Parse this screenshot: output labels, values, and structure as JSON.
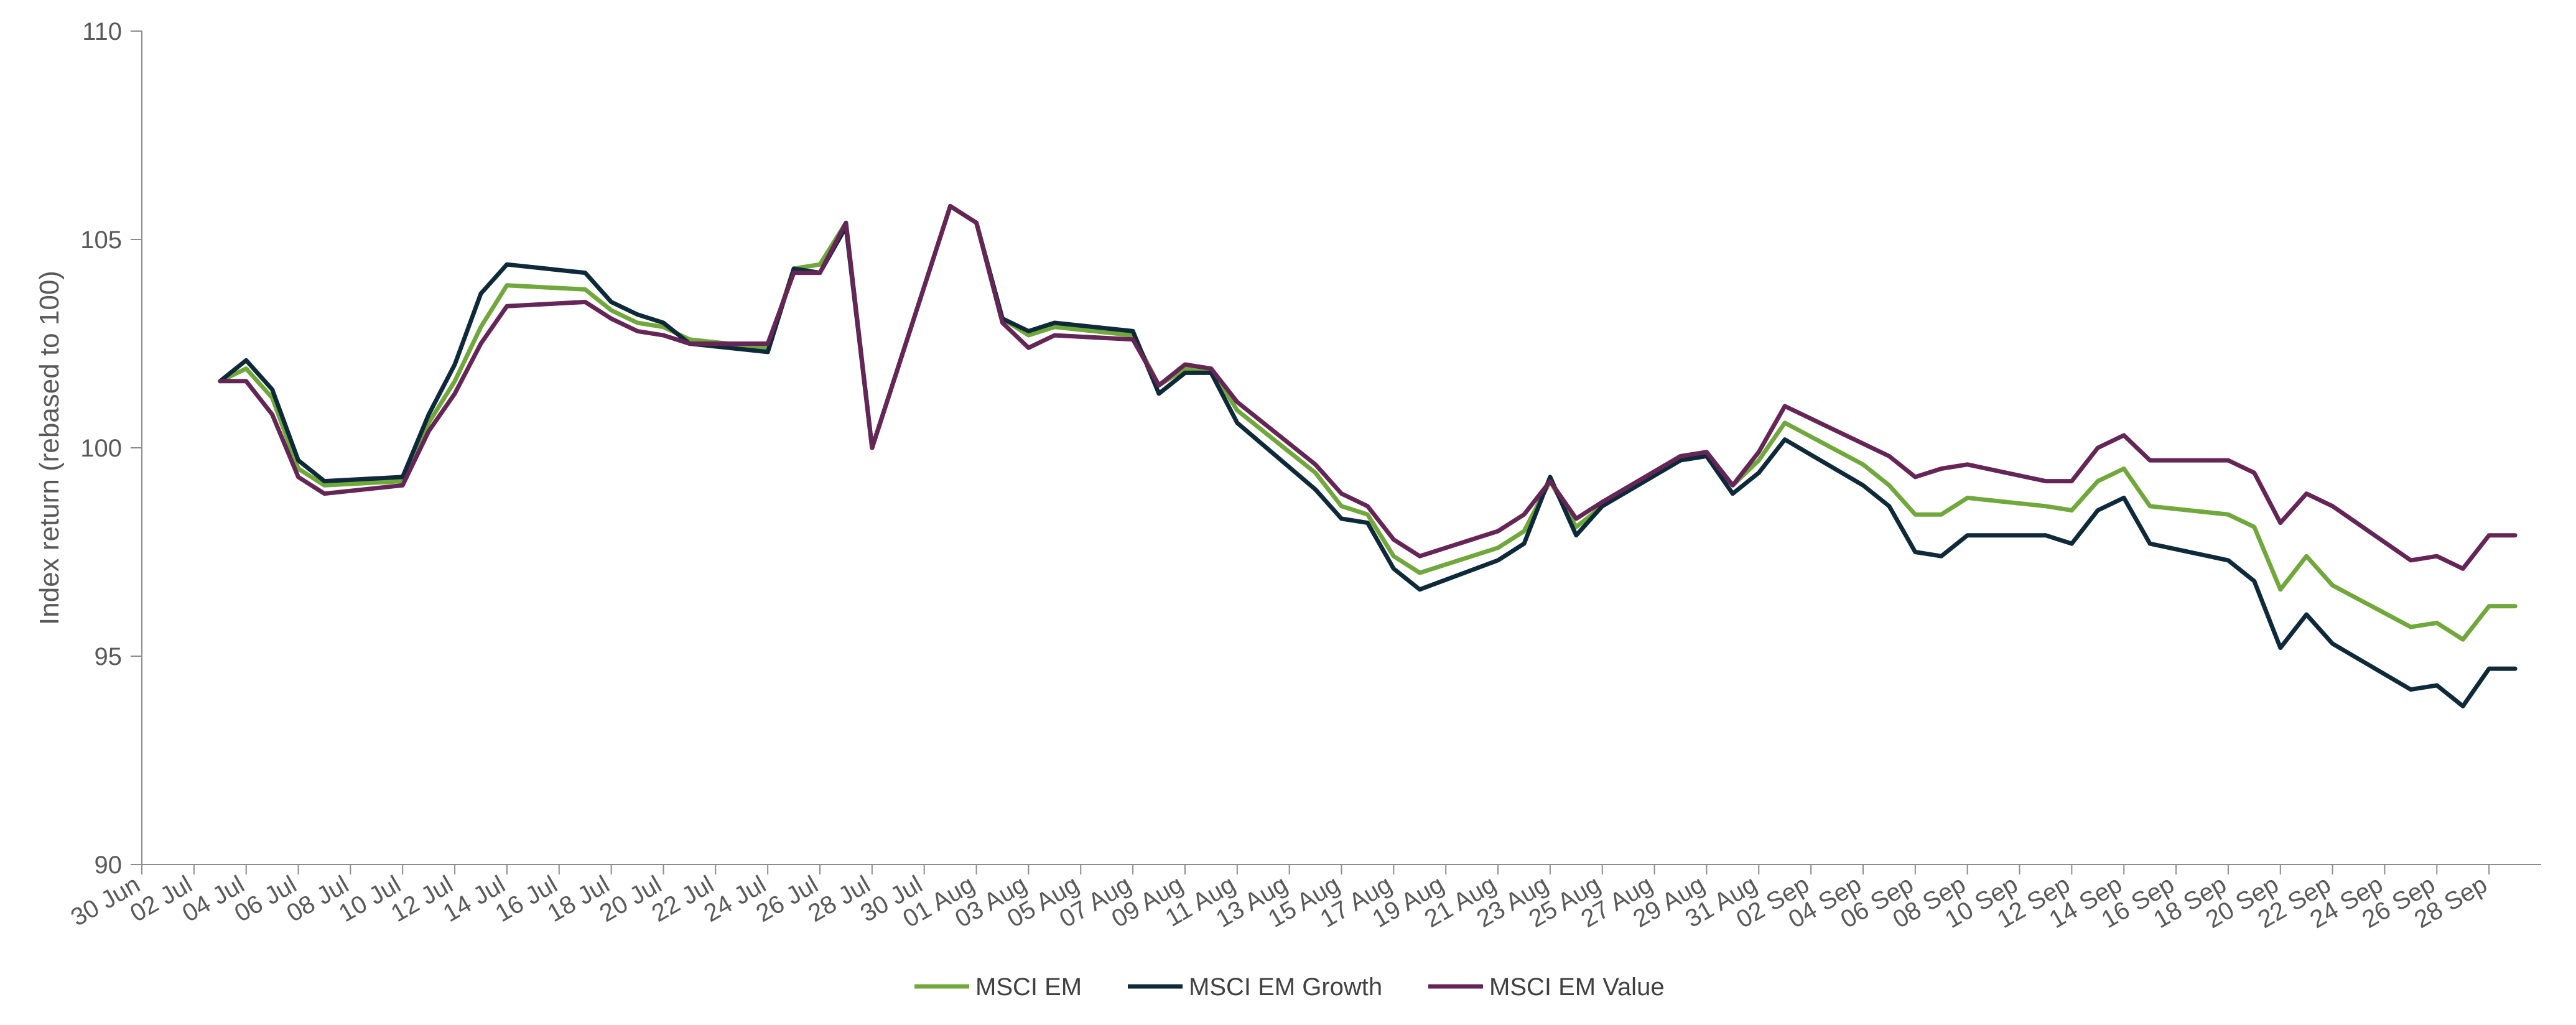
{
  "chart_data": {
    "type": "line",
    "ylabel": "Index return (rebased to 100)",
    "xlabel": "",
    "ylim": [
      90,
      110
    ],
    "yticks": [
      90,
      95,
      100,
      105,
      110
    ],
    "xlim": [
      "2023-06-30",
      "2023-09-30"
    ],
    "x_tick_dates": [
      "2023-06-30",
      "2023-07-02",
      "2023-07-04",
      "2023-07-06",
      "2023-07-08",
      "2023-07-10",
      "2023-07-12",
      "2023-07-14",
      "2023-07-16",
      "2023-07-18",
      "2023-07-20",
      "2023-07-22",
      "2023-07-24",
      "2023-07-26",
      "2023-07-28",
      "2023-07-30",
      "2023-08-01",
      "2023-08-03",
      "2023-08-05",
      "2023-08-07",
      "2023-08-09",
      "2023-08-11",
      "2023-08-13",
      "2023-08-15",
      "2023-08-17",
      "2023-08-19",
      "2023-08-21",
      "2023-08-23",
      "2023-08-25",
      "2023-08-27",
      "2023-08-29",
      "2023-08-31",
      "2023-09-02",
      "2023-09-04",
      "2023-09-06",
      "2023-09-08",
      "2023-09-10",
      "2023-09-12",
      "2023-09-14",
      "2023-09-16",
      "2023-09-18",
      "2023-09-20",
      "2023-09-22",
      "2023-09-24",
      "2023-09-26",
      "2023-09-28"
    ],
    "x_tick_labels": [
      "30 Jun",
      "02 Jul",
      "04 Jul",
      "06 Jul",
      "08 Jul",
      "10 Jul",
      "12 Jul",
      "14 Jul",
      "16 Jul",
      "18 Jul",
      "20 Jul",
      "22 Jul",
      "24 Jul",
      "26 Jul",
      "28 Jul",
      "30 Jul",
      "01 Aug",
      "03 Aug",
      "05 Aug",
      "07 Aug",
      "09 Aug",
      "11 Aug",
      "13 Aug",
      "15 Aug",
      "17 Aug",
      "19 Aug",
      "21 Aug",
      "23 Aug",
      "25 Aug",
      "27 Aug",
      "29 Aug",
      "31 Aug",
      "02 Sep",
      "04 Sep",
      "06 Sep",
      "08 Sep",
      "10 Sep",
      "12 Sep",
      "14 Sep",
      "16 Sep",
      "18 Sep",
      "20 Sep",
      "22 Sep",
      "24 Sep",
      "26 Sep",
      "28 Sep"
    ],
    "x": [
      "2023-07-03",
      "2023-07-04",
      "2023-07-05",
      "2023-07-06",
      "2023-07-07",
      "2023-07-10",
      "2023-07-11",
      "2023-07-12",
      "2023-07-13",
      "2023-07-14",
      "2023-07-17",
      "2023-07-18",
      "2023-07-19",
      "2023-07-20",
      "2023-07-21",
      "2023-07-24",
      "2023-07-25",
      "2023-07-26",
      "2023-07-27",
      "2023-07-28",
      "2023-07-31",
      "2023-08-01",
      "2023-08-02",
      "2023-08-03",
      "2023-08-04",
      "2023-08-07",
      "2023-08-08",
      "2023-08-09",
      "2023-08-10",
      "2023-08-11",
      "2023-08-14",
      "2023-08-15",
      "2023-08-16",
      "2023-08-17",
      "2023-08-18",
      "2023-08-21",
      "2023-08-22",
      "2023-08-23",
      "2023-08-24",
      "2023-08-25",
      "2023-08-28",
      "2023-08-29",
      "2023-08-30",
      "2023-08-31",
      "2023-09-01",
      "2023-09-04",
      "2023-09-05",
      "2023-09-06",
      "2023-09-07",
      "2023-09-08",
      "2023-09-11",
      "2023-09-12",
      "2023-09-13",
      "2023-09-14",
      "2023-09-15",
      "2023-09-18",
      "2023-09-19",
      "2023-09-20",
      "2023-09-21",
      "2023-09-22",
      "2023-09-25",
      "2023-09-26",
      "2023-09-27",
      "2023-09-28",
      "2023-09-29"
    ],
    "series": [
      {
        "name": "MSCI EM",
        "color": "#70A83B",
        "values": [
          101.6,
          101.9,
          101.2,
          99.5,
          99.1,
          99.2,
          100.6,
          101.6,
          102.9,
          103.9,
          103.8,
          103.3,
          103.0,
          102.9,
          102.6,
          102.4,
          104.3,
          104.4,
          105.4,
          100.0,
          105.8,
          105.4,
          103.1,
          102.7,
          102.9,
          102.7,
          101.5,
          101.9,
          101.9,
          100.9,
          99.4,
          98.6,
          98.4,
          97.4,
          97.0,
          97.6,
          98.0,
          99.2,
          98.1,
          98.6,
          99.8,
          99.8,
          99.1,
          99.7,
          100.6,
          99.6,
          99.1,
          98.4,
          98.4,
          98.8,
          98.6,
          98.5,
          99.2,
          99.5,
          98.6,
          98.4,
          98.1,
          96.6,
          97.4,
          96.7,
          95.7,
          95.8,
          95.4,
          96.2,
          96.2
        ]
      },
      {
        "name": "MSCI EM Growth",
        "color": "#0E2A3A",
        "values": [
          101.6,
          102.1,
          101.4,
          99.7,
          99.2,
          99.3,
          100.8,
          102.0,
          103.7,
          104.4,
          104.2,
          103.5,
          103.2,
          103.0,
          102.5,
          102.3,
          104.3,
          104.2,
          105.3,
          100.0,
          105.8,
          105.4,
          103.1,
          102.8,
          103.0,
          102.8,
          101.3,
          101.8,
          101.8,
          100.6,
          99.0,
          98.3,
          98.2,
          97.1,
          96.6,
          97.3,
          97.7,
          99.3,
          97.9,
          98.6,
          99.7,
          99.8,
          98.9,
          99.4,
          100.2,
          99.1,
          98.6,
          97.5,
          97.4,
          97.9,
          97.9,
          97.7,
          98.5,
          98.8,
          97.7,
          97.3,
          96.8,
          95.2,
          96.0,
          95.3,
          94.2,
          94.3,
          93.8,
          94.7,
          94.7
        ]
      },
      {
        "name": "MSCI EM Value",
        "color": "#652556",
        "values": [
          101.6,
          101.6,
          100.8,
          99.3,
          98.9,
          99.1,
          100.4,
          101.3,
          102.5,
          103.4,
          103.5,
          103.1,
          102.8,
          102.7,
          102.5,
          102.5,
          104.2,
          104.2,
          105.4,
          100.0,
          105.8,
          105.4,
          103.0,
          102.4,
          102.7,
          102.6,
          101.5,
          102.0,
          101.9,
          101.1,
          99.6,
          98.9,
          98.6,
          97.8,
          97.4,
          98.0,
          98.4,
          99.2,
          98.3,
          98.7,
          99.8,
          99.9,
          99.1,
          99.9,
          101.0,
          100.1,
          99.8,
          99.3,
          99.5,
          99.6,
          99.2,
          99.2,
          100.0,
          100.3,
          99.7,
          99.7,
          99.4,
          98.2,
          98.9,
          98.6,
          97.3,
          97.4,
          97.1,
          97.9,
          97.9
        ]
      }
    ],
    "legend": {
      "position": "bottom"
    },
    "grid": false
  }
}
